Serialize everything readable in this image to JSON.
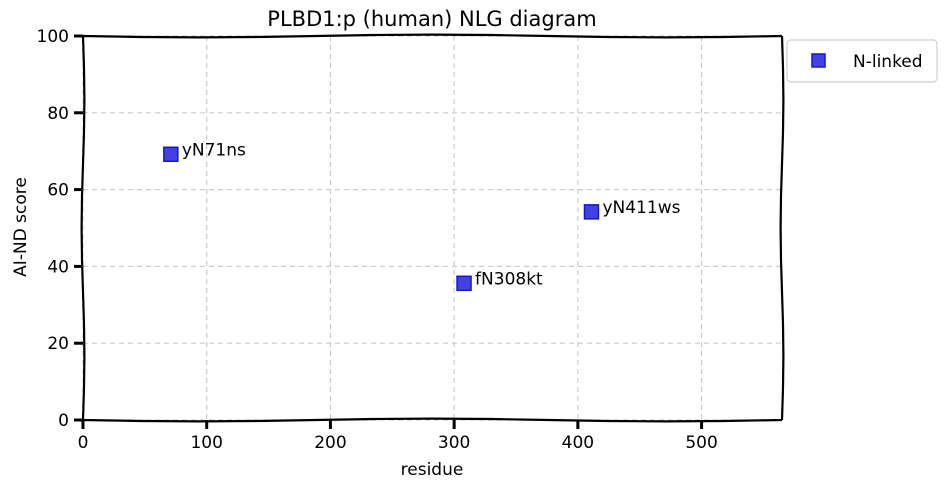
{
  "chart_data": {
    "type": "scatter",
    "title": "PLBD1:p (human) NLG diagram",
    "xlabel": "residue",
    "ylabel": "AI-ND score",
    "xlim": [
      0,
      565
    ],
    "ylim": [
      0,
      100
    ],
    "x_ticks": [
      0,
      100,
      200,
      300,
      400,
      500
    ],
    "y_ticks": [
      0,
      20,
      40,
      60,
      80,
      100
    ],
    "grid": true,
    "legend": {
      "position": "outside-top-right",
      "entries": [
        "N-linked"
      ]
    },
    "series": [
      {
        "name": "N-linked",
        "color": "#2020e0",
        "marker": "square",
        "points": [
          {
            "x": 71,
            "y": 69.2,
            "label": "yN71ns"
          },
          {
            "x": 308,
            "y": 35.6,
            "label": "fN308kt"
          },
          {
            "x": 411,
            "y": 54.2,
            "label": "yN411ws"
          }
        ]
      }
    ]
  }
}
